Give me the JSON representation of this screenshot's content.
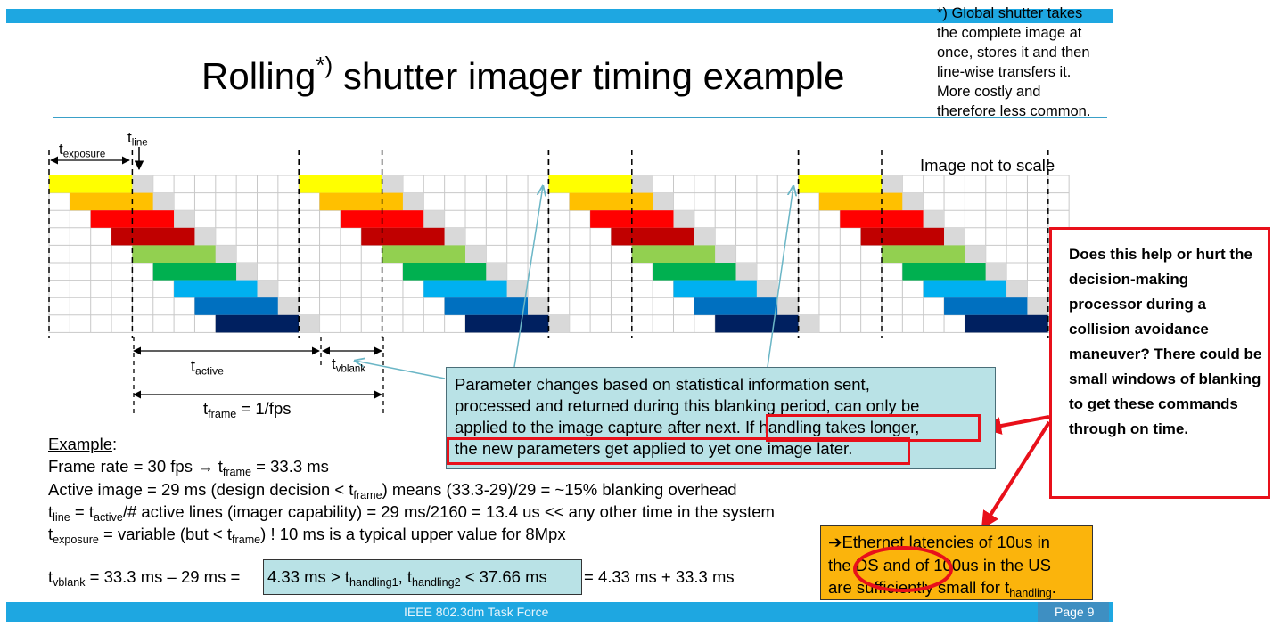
{
  "title": {
    "pre": "Rolling",
    "sup": "*)",
    "post": " shutter imager timing example"
  },
  "note": {
    "lines": [
      "*) Global shutter takes",
      "the complete image at",
      "once, stores it and then",
      "line-wise transfers it.",
      "More costly and",
      "therefore less common."
    ]
  },
  "diagram": {
    "scale_note": "Image not to scale",
    "t_exposure": {
      "base": "t",
      "sub": "exposure"
    },
    "t_line": {
      "base": "t",
      "sub": "line"
    },
    "t_active": {
      "base": "t",
      "sub": "active"
    },
    "t_vblank": {
      "base": "t",
      "sub": "vblank"
    },
    "t_frame": {
      "base": "t",
      "sub": "frame",
      "rest": " = 1/fps"
    },
    "bar_colors": [
      "#ffff00",
      "#ffc000",
      "#ff0000",
      "#c00000",
      "#92d050",
      "#00b050",
      "#00b0f0",
      "#0070c0",
      "#002060"
    ],
    "frames": 4,
    "lines_per_frame": 9
  },
  "param_box": {
    "lines": [
      "Parameter changes based on statistical information sent,",
      "processed and returned during this blanking period, can only be",
      "applied to the image capture after next. If handling takes longer,",
      "the new parameters get applied to yet one image later."
    ]
  },
  "question": {
    "text": "Does this help or hurt the decision-making processor during a collision avoidance maneuver? There could be small windows of blanking to get these commands through on time."
  },
  "example": {
    "heading": "Example",
    "line1": {
      "a": "Frame rate = 30 fps → t",
      "sub": "frame",
      "b": " = 33.3 ms"
    },
    "line2": {
      "a": "Active image = 29 ms (design decision < t",
      "sub": "frame",
      "b": ") means (33.3-29)/29 = ~15% blanking overhead"
    },
    "line3": {
      "t1": "t",
      "s1": "line",
      "m": " = t",
      "s2": "active",
      "b": "/# active lines (imager capability) = 29 ms/2160 = 13.4 us << any other time in the system"
    },
    "line4": {
      "t1": "t",
      "s1": "exposure",
      "m": " = variable (but < t",
      "s2": "frame",
      "b": ") ! 10 ms is a typical upper value for 8Mpx"
    },
    "line5": {
      "t1": "t",
      "s1": "vblank",
      "m": " = 33.3 ms – 29 ms =",
      "box_a": "4.33 ms > t",
      "box_s1": "handling1",
      "box_m": ", t",
      "box_s2": "handling2",
      "box_b": " < 37.66 ms",
      "tail": "= 4.33 ms + 33.3 ms"
    }
  },
  "ethernet": {
    "arrow": "➔",
    "l1": "Ethernet latencies of 10us in",
    "l2": "the DS and of 100us in the US",
    "l3a": "are sufficiently small for t",
    "l3sub": "handling",
    "l3b": "."
  },
  "footer": {
    "center": "IEEE 802.3dm Task Force",
    "page": "Page 9"
  }
}
